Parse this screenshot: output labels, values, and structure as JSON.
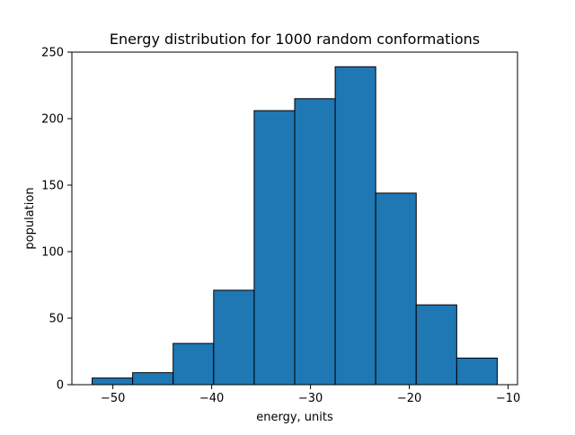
{
  "chart_data": {
    "type": "bar",
    "title": "Energy distribution for 1000 random conformations",
    "xlabel": "energy, units",
    "ylabel": "population",
    "bin_edges": [
      -52.1,
      -48.0,
      -43.9,
      -39.8,
      -35.7,
      -31.6,
      -27.5,
      -23.4,
      -19.3,
      -15.2,
      -11.1
    ],
    "values": [
      5,
      9,
      31,
      71,
      206,
      215,
      239,
      144,
      60,
      20
    ],
    "xlim": [
      -54.15,
      -9.05
    ],
    "ylim": [
      0,
      250
    ],
    "xticks": [
      -50,
      -40,
      -30,
      -20,
      -10
    ],
    "xtick_labels": [
      "−50",
      "−40",
      "−30",
      "−20",
      "−10"
    ],
    "yticks": [
      0,
      50,
      100,
      150,
      200,
      250
    ],
    "ytick_labels": [
      "0",
      "50",
      "100",
      "150",
      "200",
      "250"
    ],
    "bar_color": "#1f77b4",
    "edge_color": "#000000",
    "grid": false,
    "legend": "none"
  }
}
